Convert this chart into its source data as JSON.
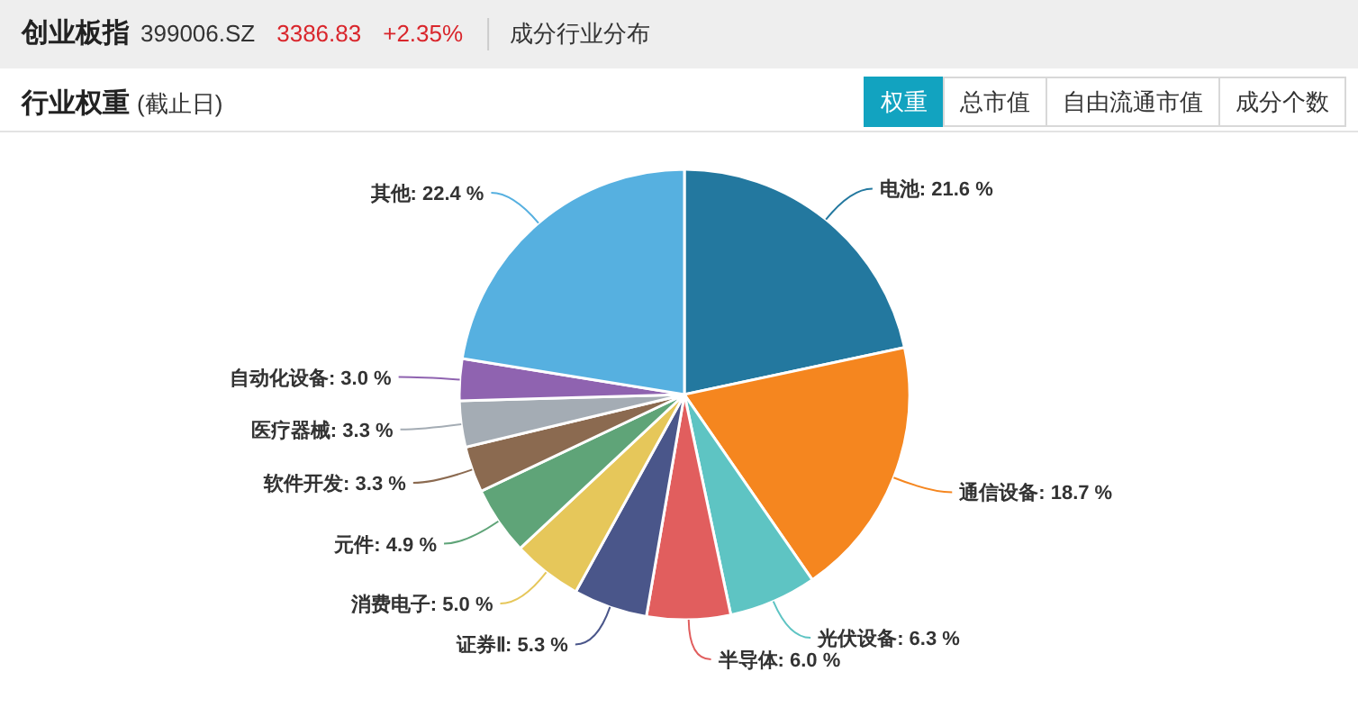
{
  "chart_data": {
    "type": "pie",
    "title": "行业权重",
    "subtitle": "(截止日)",
    "annotations": [
      "创业板指",
      "399006.SZ",
      "3386.83",
      "+2.35%",
      "成分行业分布",
      "权重",
      "总市值",
      "自由流通市值",
      "成分个数"
    ],
    "categories": [
      "电池",
      "通信设备",
      "光伏设备",
      "半导体",
      "证券Ⅱ",
      "消费电子",
      "元件",
      "软件开发",
      "医疗器械",
      "自动化设备",
      "其他"
    ],
    "values": [
      21.6,
      18.7,
      6.3,
      6.0,
      5.3,
      5.0,
      4.9,
      3.3,
      3.3,
      3.0,
      22.4
    ],
    "value_labels": [
      "21.6 %",
      "18.7 %",
      "6.3 %",
      "6.0 %",
      "5.3 %",
      "5.0 %",
      "4.9 %",
      "3.3 %",
      "3.3 %",
      "3.0 %",
      "22.4 %"
    ],
    "colors": [
      "#23789f",
      "#f5861f",
      "#5ec4c3",
      "#e15e5e",
      "#4a568a",
      "#e6c75a",
      "#5fa478",
      "#8b6a50",
      "#a4acb4",
      "#8f63b0",
      "#56b0e0"
    ],
    "legend": false
  }
}
